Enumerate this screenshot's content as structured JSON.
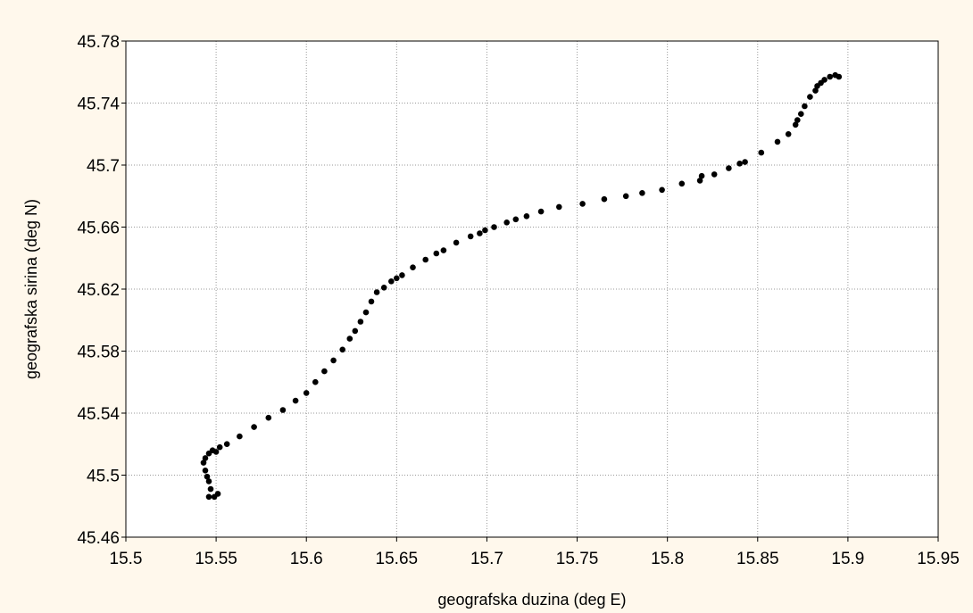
{
  "colors": {
    "background": "#FFF8EC",
    "plot_background": "#FFFFFF",
    "grid": "#9A9A9A",
    "axis": "#000000",
    "marker": "#000000",
    "text": "#000000"
  },
  "chart_data": {
    "type": "scatter",
    "xlabel": "geografska duzina (deg E)",
    "ylabel": "geografska sirina (deg N)",
    "xlim": [
      15.5,
      15.95
    ],
    "ylim": [
      45.46,
      45.78
    ],
    "xticks": [
      "15.5",
      "15.55",
      "15.6",
      "15.65",
      "15.7",
      "15.75",
      "15.8",
      "15.85",
      "15.9",
      "15.95"
    ],
    "yticks": [
      "45.46",
      "45.5",
      "45.54",
      "45.58",
      "45.62",
      "45.66",
      "45.7",
      "45.74",
      "45.78"
    ],
    "grid": true,
    "legend": "none",
    "series": [
      {
        "x": [
          15.549,
          15.551,
          15.546,
          15.547,
          15.546,
          15.545,
          15.544,
          15.543,
          15.544,
          15.546,
          15.548,
          15.55,
          15.552,
          15.556,
          15.563,
          15.571,
          15.579,
          15.587,
          15.594,
          15.6,
          15.605,
          15.61,
          15.615,
          15.62,
          15.624,
          15.627,
          15.63,
          15.633,
          15.636,
          15.639,
          15.643,
          15.647,
          15.65,
          15.653,
          15.659,
          15.666,
          15.672,
          15.676,
          15.683,
          15.691,
          15.696,
          15.699,
          15.704,
          15.711,
          15.716,
          15.722,
          15.73,
          15.74,
          15.753,
          15.765,
          15.777,
          15.786,
          15.797,
          15.808,
          15.818,
          15.819,
          15.826,
          15.834,
          15.84,
          15.843,
          15.852,
          15.861,
          15.867,
          15.871,
          15.872,
          15.874,
          15.876,
          15.879,
          15.882,
          15.883,
          15.885,
          15.887,
          15.89,
          15.893,
          15.895
        ],
        "y": [
          45.486,
          45.488,
          45.486,
          45.491,
          45.496,
          45.499,
          45.503,
          45.508,
          45.511,
          45.514,
          45.516,
          45.515,
          45.518,
          45.52,
          45.525,
          45.531,
          45.537,
          45.542,
          45.548,
          45.553,
          45.56,
          45.567,
          45.574,
          45.581,
          45.588,
          45.593,
          45.599,
          45.605,
          45.612,
          45.618,
          45.621,
          45.625,
          45.627,
          45.629,
          45.634,
          45.639,
          45.643,
          45.645,
          45.65,
          45.654,
          45.656,
          45.658,
          45.66,
          45.663,
          45.665,
          45.667,
          45.67,
          45.673,
          45.675,
          45.678,
          45.68,
          45.682,
          45.684,
          45.688,
          45.69,
          45.693,
          45.694,
          45.698,
          45.701,
          45.702,
          45.708,
          45.715,
          45.72,
          45.726,
          45.729,
          45.733,
          45.738,
          45.744,
          45.748,
          45.751,
          45.753,
          45.755,
          45.757,
          45.758,
          45.757
        ]
      }
    ]
  }
}
